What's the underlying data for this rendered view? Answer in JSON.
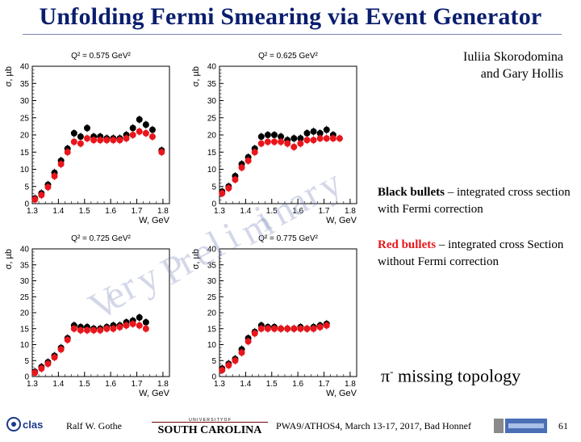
{
  "title": "Unfolding Fermi Smearing via Event Generator",
  "authors": [
    "Iuliia Skorodomina",
    "and Gary Hollis"
  ],
  "legend": {
    "black_key": "Black bullets",
    "black_text": " – integrated cross section with Fermi correction",
    "red_key": "Red bullets",
    "red_text": " – integrated cross Section without Fermi correction"
  },
  "topology": {
    "pi": "π",
    "sup": "-",
    "text": " missing topology"
  },
  "watermark": [
    "V",
    "e",
    "r",
    "y",
    "P",
    "r",
    "e",
    "l",
    "i",
    "m",
    "i",
    "n",
    "a",
    "r",
    "y"
  ],
  "footer": {
    "author": "Ralf W. Gothe",
    "conference": "PWA9/ATHOS4, March 13-17, 2017, Bad Honnef",
    "page": "61",
    "clas_logo": "clas",
    "sc_top": "U N I V E R S I T Y   O F",
    "sc_bottom": "SOUTH CAROLINA"
  },
  "colors": {
    "title": "#0a1e6e",
    "black": "#000000",
    "red": "#e8161c",
    "watermark": "#828cbe"
  },
  "chart_data": [
    {
      "type": "scatter",
      "title": "Q² = 0.575 GeV²",
      "xlabel": "W, GeV",
      "ylabel": "σ, µb",
      "xlim": [
        1.3,
        1.825
      ],
      "ylim": [
        0,
        40
      ],
      "xticks": [
        "1.3",
        "1.4",
        "1.5",
        "1.6",
        "1.7",
        "1.8"
      ],
      "yticks": [
        "0",
        "5",
        "10",
        "15",
        "20",
        "25",
        "30",
        "35",
        "40"
      ],
      "series": [
        {
          "color": "black",
          "x": [
            1.31,
            1.335,
            1.36,
            1.385,
            1.41,
            1.435,
            1.46,
            1.485,
            1.51,
            1.535,
            1.56,
            1.585,
            1.61,
            1.635,
            1.66,
            1.685,
            1.71,
            1.735,
            1.76,
            1.795
          ],
          "y": [
            1.5,
            3,
            5.5,
            9,
            12.5,
            16,
            20.5,
            19.5,
            22,
            19.5,
            19.5,
            19,
            19,
            19,
            20,
            22,
            24.5,
            23,
            21.5,
            15.5
          ]
        },
        {
          "color": "red",
          "x": [
            1.31,
            1.335,
            1.36,
            1.385,
            1.41,
            1.435,
            1.46,
            1.485,
            1.51,
            1.535,
            1.56,
            1.585,
            1.61,
            1.635,
            1.66,
            1.685,
            1.71,
            1.735,
            1.76,
            1.795
          ],
          "y": [
            1.2,
            2.5,
            4.8,
            8,
            11.5,
            15,
            18,
            17.5,
            19,
            18.5,
            18.5,
            18.5,
            18.5,
            18.5,
            19,
            20,
            21,
            20.5,
            19.5,
            15
          ]
        }
      ]
    },
    {
      "type": "scatter",
      "title": "Q² = 0.625 GeV²",
      "xlabel": "W, GeV",
      "ylabel": "σ, µb",
      "xlim": [
        1.3,
        1.825
      ],
      "ylim": [
        0,
        40
      ],
      "xticks": [
        "1.3",
        "1.4",
        "1.5",
        "1.6",
        "1.7",
        "1.8"
      ],
      "yticks": [
        "0",
        "5",
        "10",
        "15",
        "20",
        "25",
        "30",
        "35",
        "40"
      ],
      "series": [
        {
          "color": "black",
          "x": [
            1.31,
            1.335,
            1.36,
            1.385,
            1.41,
            1.435,
            1.46,
            1.485,
            1.51,
            1.535,
            1.56,
            1.585,
            1.61,
            1.635,
            1.66,
            1.685,
            1.71,
            1.735
          ],
          "y": [
            3.5,
            5,
            8,
            11.5,
            13.5,
            16,
            19.5,
            20,
            20,
            19.5,
            18.5,
            19,
            19,
            20.5,
            21,
            20.5,
            21.5,
            20
          ]
        },
        {
          "color": "red",
          "x": [
            1.31,
            1.335,
            1.36,
            1.385,
            1.41,
            1.435,
            1.46,
            1.485,
            1.51,
            1.535,
            1.56,
            1.585,
            1.61,
            1.635,
            1.66,
            1.685,
            1.71,
            1.735,
            1.76
          ],
          "y": [
            3,
            4.5,
            7,
            10.5,
            12.5,
            15,
            17.5,
            18,
            18,
            18,
            17.5,
            16.5,
            17.5,
            18.5,
            18.5,
            19,
            19,
            19,
            19
          ]
        }
      ]
    },
    {
      "type": "scatter",
      "title": "Q² = 0.725 GeV²",
      "xlabel": "W, GeV",
      "ylabel": "σ, µb",
      "xlim": [
        1.3,
        1.825
      ],
      "ylim": [
        0,
        40
      ],
      "xticks": [
        "1.3",
        "1.4",
        "1.5",
        "1.6",
        "1.7",
        "1.8"
      ],
      "yticks": [
        "0",
        "5",
        "10",
        "15",
        "20",
        "25",
        "30",
        "35",
        "40"
      ],
      "series": [
        {
          "color": "black",
          "x": [
            1.31,
            1.335,
            1.36,
            1.385,
            1.41,
            1.435,
            1.46,
            1.485,
            1.51,
            1.535,
            1.56,
            1.585,
            1.61,
            1.635,
            1.66,
            1.685,
            1.71,
            1.735
          ],
          "y": [
            1.5,
            3,
            4.5,
            6.5,
            9,
            12,
            16,
            15.5,
            15.5,
            15,
            15,
            15.5,
            16,
            16,
            17,
            17.5,
            18.5,
            17
          ]
        },
        {
          "color": "red",
          "x": [
            1.31,
            1.335,
            1.36,
            1.385,
            1.41,
            1.435,
            1.46,
            1.485,
            1.51,
            1.535,
            1.56,
            1.585,
            1.61,
            1.635,
            1.66,
            1.685,
            1.71,
            1.735
          ],
          "y": [
            1.2,
            2.5,
            4,
            6,
            8.5,
            11.5,
            15,
            14.5,
            14.5,
            14.5,
            14.5,
            15,
            15,
            15.5,
            16,
            16.5,
            16,
            15
          ]
        }
      ]
    },
    {
      "type": "scatter",
      "title": "Q² = 0.775 GeV²",
      "xlabel": "W, GeV",
      "ylabel": "σ, µb",
      "xlim": [
        1.3,
        1.825
      ],
      "ylim": [
        0,
        40
      ],
      "xticks": [
        "1.3",
        "1.4",
        "1.5",
        "1.6",
        "1.7",
        "1.8"
      ],
      "yticks": [
        "0",
        "5",
        "10",
        "15",
        "20",
        "25",
        "30",
        "35",
        "40"
      ],
      "series": [
        {
          "color": "black",
          "x": [
            1.31,
            1.335,
            1.36,
            1.385,
            1.41,
            1.435,
            1.46,
            1.485,
            1.51,
            1.535,
            1.56,
            1.585,
            1.61,
            1.635,
            1.66,
            1.685,
            1.71
          ],
          "y": [
            2.5,
            4,
            5.5,
            8.5,
            12,
            14,
            16,
            15.5,
            15.5,
            15,
            15,
            15,
            15.5,
            15,
            15.5,
            16,
            16.5
          ]
        },
        {
          "color": "red",
          "x": [
            1.31,
            1.335,
            1.36,
            1.385,
            1.41,
            1.435,
            1.46,
            1.485,
            1.51,
            1.535,
            1.56,
            1.585,
            1.61,
            1.635,
            1.66,
            1.685,
            1.71
          ],
          "y": [
            2,
            3.5,
            5,
            7.5,
            11,
            13.5,
            15,
            15,
            15,
            15,
            15,
            15,
            15,
            15,
            15,
            15.5,
            16
          ]
        }
      ]
    }
  ]
}
